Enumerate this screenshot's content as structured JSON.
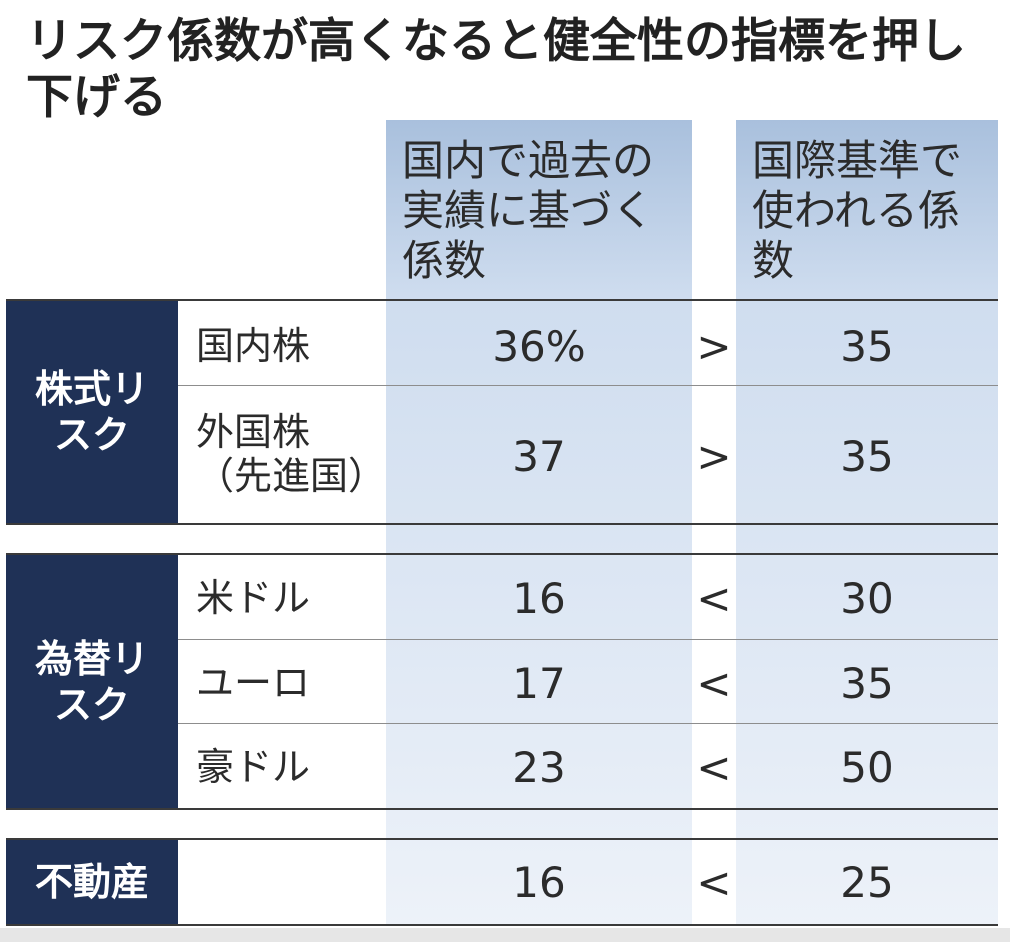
{
  "title": "リスク係数が高くなると健全性の指標を押し下げる",
  "columns": {
    "domestic": "国内で過去の実績に基づく係数",
    "international": "国際基準で使われる係数"
  },
  "groups": [
    {
      "label": "株式リスク",
      "rows": [
        {
          "item": "国内株",
          "domestic": "36%",
          "comparison": ">",
          "international": "35"
        },
        {
          "item": "外国株（先進国）",
          "domestic": "37",
          "comparison": ">",
          "international": "35"
        }
      ]
    },
    {
      "label": "為替リスク",
      "rows": [
        {
          "item": "米ドル",
          "domestic": "16",
          "comparison": "<",
          "international": "30"
        },
        {
          "item": "ユーロ",
          "domestic": "17",
          "comparison": "<",
          "international": "35"
        },
        {
          "item": "豪ドル",
          "domestic": "23",
          "comparison": "<",
          "international": "50"
        }
      ]
    },
    {
      "label": "不動産",
      "rows": [
        {
          "item": "",
          "domestic": "16",
          "comparison": "<",
          "international": "25"
        }
      ]
    }
  ],
  "chart_data": {
    "type": "table",
    "title": "リスク係数が高くなると健全性の指標を押し下げる",
    "columns": [
      "国内で過去の実績に基づく係数",
      "国際基準で使われる係数"
    ],
    "rows": [
      {
        "group": "株式リスク",
        "item": "国内株",
        "domestic": 36,
        "international": 35
      },
      {
        "group": "株式リスク",
        "item": "外国株（先進国）",
        "domestic": 37,
        "international": 35
      },
      {
        "group": "為替リスク",
        "item": "米ドル",
        "domestic": 16,
        "international": 30
      },
      {
        "group": "為替リスク",
        "item": "ユーロ",
        "domestic": 17,
        "international": 35
      },
      {
        "group": "為替リスク",
        "item": "豪ドル",
        "domestic": 23,
        "international": 50
      },
      {
        "group": "不動産",
        "item": "",
        "domestic": 16,
        "international": 25
      }
    ],
    "unit": "%"
  },
  "colors": {
    "group_label_bg": "#1f3156",
    "column_highlight": "#cfddef"
  }
}
